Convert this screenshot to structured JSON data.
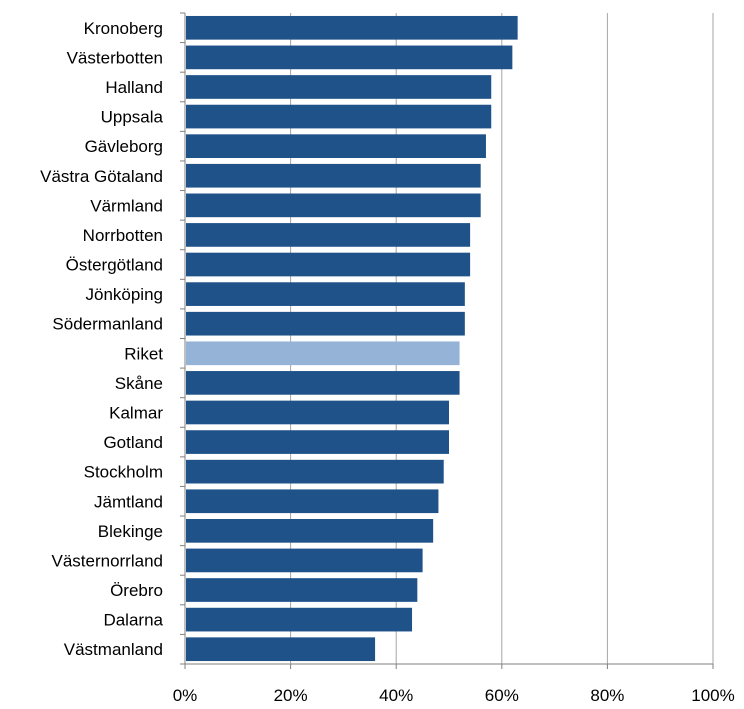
{
  "chart_data": {
    "type": "bar",
    "orientation": "horizontal",
    "categories": [
      "Kronoberg",
      "Västerbotten",
      "Halland",
      "Uppsala",
      "Gävleborg",
      "Västra Götaland",
      "Värmland",
      "Norrbotten",
      "Östergötland",
      "Jönköping",
      "Södermanland",
      "Riket",
      "Skåne",
      "Kalmar",
      "Gotland",
      "Stockholm",
      "Jämtland",
      "Blekinge",
      "Västernorrland",
      "Örebro",
      "Dalarna",
      "Västmanland"
    ],
    "values": [
      63,
      62,
      58,
      58,
      57,
      56,
      56,
      54,
      54,
      53,
      53,
      52,
      52,
      50,
      50,
      49,
      48,
      47,
      45,
      44,
      43,
      36
    ],
    "highlight_category": "Riket",
    "xlim": [
      0,
      100
    ],
    "x_ticks": [
      "0%",
      "20%",
      "40%",
      "60%",
      "80%",
      "100%"
    ],
    "x_tick_values": [
      0,
      20,
      40,
      60,
      80,
      100
    ],
    "grid": true,
    "title": "",
    "xlabel": "",
    "ylabel": ""
  },
  "colors": {
    "bar": "#1F5289",
    "highlight": "#95B3D7",
    "grid": "#A6A6A6",
    "axis": "#808080"
  }
}
